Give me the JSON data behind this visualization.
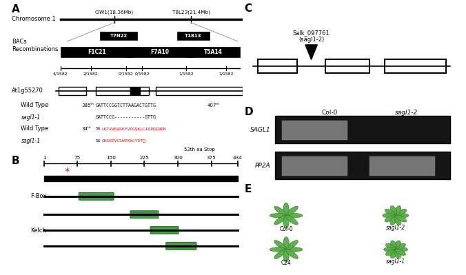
{
  "fig_width": 6.76,
  "fig_height": 3.99,
  "bg_color": "#ffffff",
  "panel_A_label": "A",
  "panel_B_label": "B",
  "panel_C_label": "C",
  "panel_D_label": "D",
  "panel_E_label": "E",
  "chr1_label": "Chromosome 1",
  "marker1": "CIW1(18.36Mb)",
  "marker2": "T8L23(21.4Mb)",
  "bacs_label": "BACs\nRecombinations",
  "bac_names": [
    "F1C21",
    "T7N22",
    "F7A10",
    "T1813",
    "T5A14"
  ],
  "recomb_values": [
    "4/1582",
    "2/1582",
    "0/1582",
    "0/1582",
    "1/1582",
    "1/1582"
  ],
  "gene_label": "At1g55270",
  "wt_label": "Wild Type",
  "mut_label": "sagl1-1",
  "wt_seq": "GATTCCGGTCTTAAGACTGTTG",
  "mut_seq": "GATTCCG-----------GTTG",
  "wt_aa_black": "SG",
  "wt_aa_red": "LKTVVEARKFVPGSKLCIQPDINPN",
  "mut_aa_black": "SG",
  "mut_aa_red": "CRSKEVCSWFKALYST□",
  "stop_label": "52th aa Stop",
  "domain_ticks": [
    1,
    75,
    150,
    225,
    300,
    375,
    434
  ],
  "fbox_label": "F-Box",
  "kelch_label": "Kelch",
  "salk_label": "Salk_097761\n(sagl1-2)",
  "col0_label": "Col-0",
  "sagl12_label": "sagl1-2",
  "sagl11_label": "sagl1-1",
  "c24_label": "C24",
  "sagl1_gene": "SAGL1",
  "pp2a_gene": "PP2A",
  "green_domain": "#4a9a4a",
  "dark_green": "#2a7a2a"
}
